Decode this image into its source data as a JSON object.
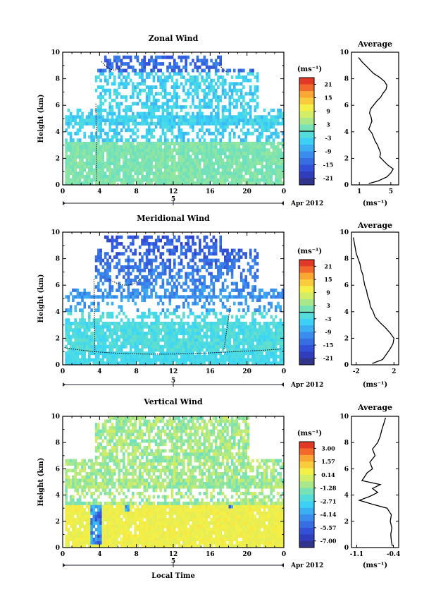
{
  "chart_data": [
    {
      "type": "heatmap",
      "title": "Zonal Wind",
      "ylabel": "Height (km)",
      "xlabel": "",
      "xticks": [
        "0",
        "4",
        "8",
        "12",
        "16",
        "20",
        "0"
      ],
      "yticks": [
        "0",
        "2",
        "4",
        "6",
        "8",
        "10"
      ],
      "date_tick": "5",
      "date_label": "Apr 2012",
      "xlim": [
        0,
        24
      ],
      "ylim": [
        0,
        10
      ],
      "colorbar": {
        "label": "(ms⁻¹)",
        "ticks": [
          "21",
          "15",
          "9",
          "3",
          "-3",
          "-9",
          "-15",
          "-21"
        ],
        "zero_line_at": 0,
        "range": [
          -24,
          24
        ]
      },
      "typical_values": {
        "low_level_0_3km": 2,
        "mid_level_3_8km": -4,
        "upper_8_10km": -14,
        "contour": "0 ms⁻¹ dotted"
      },
      "average": {
        "title": "Average",
        "xlabel": "(ms⁻¹)",
        "xticks": [
          "1",
          "5"
        ],
        "xlim": [
          0,
          6
        ],
        "height": [
          0.1,
          0.3,
          0.6,
          0.9,
          1.2,
          1.5,
          1.8,
          2.1,
          2.4,
          2.7,
          3.0,
          3.3,
          3.6,
          3.9,
          4.2,
          4.5,
          4.8,
          5.1,
          5.4,
          5.7,
          6.0,
          6.3,
          6.6,
          6.9,
          7.2,
          7.5,
          7.8,
          8.1,
          8.4,
          8.7,
          9.0,
          9.3,
          9.6
        ],
        "value": [
          2.2,
          3.4,
          4.5,
          5.0,
          5.3,
          4.6,
          4.1,
          3.6,
          3.7,
          3.5,
          3.3,
          3.0,
          2.8,
          2.6,
          2.2,
          2.4,
          2.6,
          2.5,
          2.3,
          2.4,
          2.8,
          3.2,
          3.7,
          4.0,
          4.4,
          4.5,
          4.2,
          3.6,
          2.8,
          2.3,
          1.8,
          1.3,
          0.9
        ]
      }
    },
    {
      "type": "heatmap",
      "title": "Meridional Wind",
      "ylabel": "Height (km)",
      "xlabel": "",
      "xticks": [
        "0",
        "4",
        "8",
        "12",
        "16",
        "20",
        "0"
      ],
      "yticks": [
        "0",
        "2",
        "4",
        "6",
        "8",
        "10"
      ],
      "date_tick": "5",
      "date_label": "Apr 2012",
      "xlim": [
        0,
        24
      ],
      "ylim": [
        0,
        10
      ],
      "colorbar": {
        "label": "(ms⁻¹)",
        "ticks": [
          "21",
          "15",
          "9",
          "3",
          "-3",
          "-9",
          "-15",
          "-21"
        ],
        "zero_line_at": 0,
        "range": [
          -24,
          24
        ]
      },
      "typical_values": {
        "low_level_0_1km": -3,
        "mid_level_1_4km": -2,
        "upper_4_10km": -8,
        "contour": "0 ms⁻¹ dotted"
      },
      "average": {
        "title": "Average",
        "xlabel": "(ms⁻¹)",
        "xticks": [
          "-2",
          "2"
        ],
        "xlim": [
          -2.5,
          2.5
        ],
        "height": [
          0.1,
          0.4,
          0.8,
          1.2,
          1.6,
          2.0,
          2.4,
          2.8,
          3.2,
          3.6,
          4.0,
          4.4,
          4.8,
          5.2,
          5.6,
          6.0,
          6.4,
          6.8,
          7.2,
          7.6,
          8.0,
          8.4,
          8.8,
          9.2,
          9.6
        ],
        "value": [
          -0.3,
          0.8,
          1.2,
          1.6,
          1.9,
          2.0,
          1.6,
          1.1,
          0.5,
          0.0,
          -0.2,
          -0.5,
          -0.6,
          -0.8,
          -0.9,
          -1.1,
          -1.2,
          -1.3,
          -1.5,
          -1.6,
          -1.8,
          -2.0,
          -2.1,
          -2.2,
          -2.3
        ]
      }
    },
    {
      "type": "heatmap",
      "title": "Vertical Wind",
      "ylabel": "Height (km)",
      "xlabel": "Local Time",
      "xticks": [
        "0",
        "4",
        "8",
        "12",
        "16",
        "20",
        "0"
      ],
      "yticks": [
        "0",
        "2",
        "4",
        "6",
        "8",
        "10"
      ],
      "date_tick": "5",
      "date_label": "Apr 2012",
      "xlim": [
        0,
        24
      ],
      "ylim": [
        0,
        10
      ],
      "colorbar": {
        "label": "(ms⁻¹)",
        "ticks": [
          "3.00",
          "1.57",
          "0.14",
          "-1.28",
          "-2.71",
          "-4.14",
          "-5.57",
          "-7.00"
        ],
        "range": [
          -7.5,
          3.5
        ]
      },
      "typical_values": {
        "low_level_0_3km": 0.3,
        "mid_level_4_10km": -1.0,
        "convective_cores_at_h4_7_18": -6.0
      },
      "average": {
        "title": "Average",
        "xlabel": "(ms⁻¹)",
        "xticks": [
          "-1.1",
          "-0.4"
        ],
        "xlim": [
          -1.2,
          -0.3
        ],
        "height": [
          0.1,
          0.5,
          1.0,
          1.5,
          2.0,
          2.5,
          3.0,
          3.3,
          3.6,
          3.9,
          4.2,
          4.5,
          4.8,
          5.1,
          5.4,
          5.7,
          6.0,
          6.5,
          7.0,
          7.5,
          8.0,
          8.5,
          9.0,
          9.5,
          9.9
        ],
        "value": [
          -0.42,
          -0.44,
          -0.45,
          -0.43,
          -0.46,
          -0.44,
          -0.52,
          -0.8,
          -1.05,
          -0.85,
          -0.7,
          -0.8,
          -0.65,
          -1.0,
          -0.95,
          -0.9,
          -0.8,
          -0.85,
          -0.75,
          -0.8,
          -0.7,
          -0.65,
          -0.62,
          -0.58,
          -0.55
        ]
      }
    }
  ]
}
